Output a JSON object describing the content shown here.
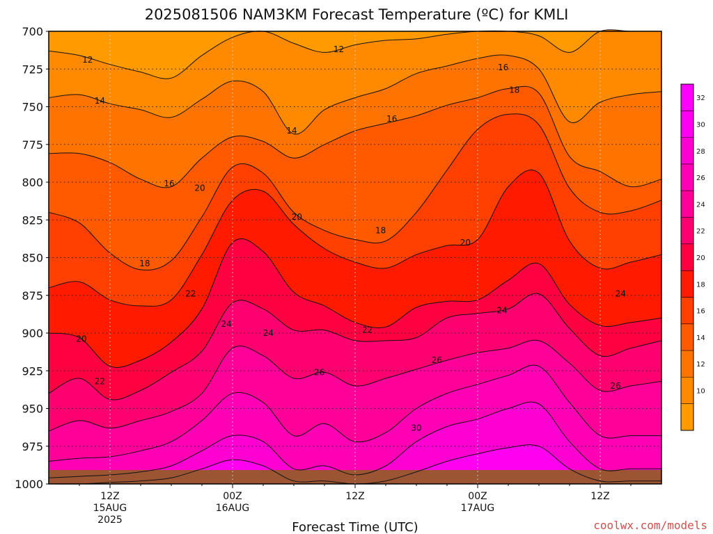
{
  "chart_data": {
    "type": "heatmap",
    "title": "2025081506 NAM3KM Forecast Temperature (ºC) for KMLI",
    "xlabel": "Forecast Time (UTC)",
    "ylabel": "",
    "y_axis": {
      "ticks": [
        "700",
        "725",
        "750",
        "775",
        "800",
        "825",
        "850",
        "875",
        "900",
        "925",
        "950",
        "975",
        "1000"
      ],
      "range": [
        700,
        1000
      ],
      "inverted": true
    },
    "x_axis": {
      "ticks": [
        {
          "time": "12Z",
          "date": "15AUG",
          "year": "2025"
        },
        {
          "time": "00Z",
          "date": "16AUG",
          "year": ""
        },
        {
          "time": "12Z",
          "date": "",
          "year": ""
        },
        {
          "time": "00Z",
          "date": "17AUG",
          "year": ""
        },
        {
          "time": "12Z",
          "date": "",
          "year": ""
        }
      ],
      "range_hours": [
        6,
        66
      ]
    },
    "colorbar": {
      "levels": [
        10,
        12,
        14,
        16,
        18,
        20,
        22,
        24,
        26,
        28,
        30,
        32
      ],
      "labels": [
        "10",
        "12",
        "14",
        "16",
        "18",
        "20",
        "22",
        "24",
        "26",
        "28",
        "30",
        "32"
      ],
      "colors": [
        "#ff9a00",
        "#ff8a00",
        "#ff7400",
        "#ff5a00",
        "#ff4000",
        "#ff1a00",
        "#ff0040",
        "#ff0070",
        "#ff0098",
        "#ff00b4",
        "#ff00d2",
        "#ff00f0",
        "#ff00ff"
      ]
    },
    "contour_labels": [
      {
        "text": "12",
        "hour": 9.8,
        "p": 719
      },
      {
        "text": "12",
        "hour": 34.4,
        "p": 712
      },
      {
        "text": "14",
        "hour": 11.0,
        "p": 746
      },
      {
        "text": "14",
        "hour": 29.8,
        "p": 766
      },
      {
        "text": "16",
        "hour": 17.8,
        "p": 801
      },
      {
        "text": "16",
        "hour": 39.6,
        "p": 758
      },
      {
        "text": "16",
        "hour": 50.5,
        "p": 724
      },
      {
        "text": "18",
        "hour": 51.6,
        "p": 739
      },
      {
        "text": "18",
        "hour": 38.5,
        "p": 832
      },
      {
        "text": "18",
        "hour": 15.4,
        "p": 854
      },
      {
        "text": "20",
        "hour": 20.8,
        "p": 804
      },
      {
        "text": "20",
        "hour": 30.3,
        "p": 823
      },
      {
        "text": "20",
        "hour": 46.8,
        "p": 840
      },
      {
        "text": "20",
        "hour": 9.2,
        "p": 904
      },
      {
        "text": "22",
        "hour": 19.9,
        "p": 874
      },
      {
        "text": "22",
        "hour": 37.2,
        "p": 898
      },
      {
        "text": "22",
        "hour": 11.0,
        "p": 932
      },
      {
        "text": "24",
        "hour": 23.4,
        "p": 894
      },
      {
        "text": "24",
        "hour": 27.5,
        "p": 900
      },
      {
        "text": "24",
        "hour": 50.4,
        "p": 885
      },
      {
        "text": "24",
        "hour": 62.0,
        "p": 874
      },
      {
        "text": "26",
        "hour": 32.5,
        "p": 926
      },
      {
        "text": "26",
        "hour": 44.0,
        "p": 918
      },
      {
        "text": "26",
        "hour": 61.5,
        "p": 935
      },
      {
        "text": "30",
        "hour": 42.0,
        "p": 963
      }
    ],
    "isotherm_profiles": {
      "hours": [
        6,
        9,
        12,
        15,
        18,
        21,
        24,
        27,
        30,
        33,
        36,
        39,
        42,
        45,
        48,
        51,
        54,
        57,
        60,
        63,
        66
      ],
      "t12": [
        713,
        716,
        722,
        727,
        731,
        716,
        704,
        700,
        708,
        714,
        709,
        706,
        705,
        702,
        700,
        700,
        703,
        714,
        700,
        700,
        700
      ],
      "t14": [
        744,
        742,
        748,
        752,
        757,
        745,
        733,
        740,
        768,
        752,
        744,
        738,
        728,
        723,
        718,
        716,
        725,
        760,
        747,
        742,
        740
      ],
      "t16": [
        781,
        781,
        787,
        798,
        803,
        784,
        770,
        773,
        784,
        775,
        766,
        761,
        756,
        749,
        744,
        738,
        741,
        783,
        793,
        803,
        798
      ],
      "t18": [
        820,
        827,
        847,
        858,
        852,
        823,
        790,
        794,
        820,
        832,
        838,
        839,
        820,
        792,
        765,
        755,
        762,
        804,
        820,
        819,
        812
      ],
      "t20": [
        870,
        866,
        878,
        882,
        878,
        848,
        812,
        806,
        828,
        844,
        853,
        857,
        848,
        842,
        838,
        803,
        794,
        839,
        857,
        853,
        848
      ],
      "t22": [
        900,
        903,
        922,
        918,
        906,
        884,
        840,
        846,
        873,
        882,
        893,
        896,
        883,
        879,
        878,
        865,
        854,
        881,
        895,
        893,
        890
      ],
      "t24": [
        940,
        930,
        944,
        938,
        926,
        912,
        880,
        884,
        898,
        898,
        905,
        905,
        903,
        890,
        887,
        884,
        874,
        897,
        915,
        910,
        905
      ],
      "t26": [
        965,
        958,
        963,
        958,
        952,
        940,
        910,
        915,
        930,
        926,
        935,
        930,
        924,
        918,
        913,
        910,
        905,
        920,
        938,
        935,
        932
      ],
      "t28": [
        985,
        983,
        982,
        978,
        972,
        958,
        940,
        946,
        968,
        960,
        972,
        966,
        950,
        940,
        934,
        928,
        922,
        946,
        968,
        968,
        968
      ],
      "t30": [
        996,
        995,
        994,
        992,
        988,
        978,
        968,
        972,
        990,
        988,
        994,
        988,
        972,
        962,
        957,
        950,
        947,
        972,
        990,
        990,
        990
      ],
      "t32": [
        1000,
        1000,
        999,
        998,
        996,
        990,
        984,
        988,
        998,
        998,
        1000,
        998,
        992,
        985,
        980,
        976,
        975,
        990,
        998,
        998,
        998
      ]
    },
    "ground_color": "#9b5533",
    "grid": true,
    "credit": "coolwx.com/models"
  }
}
